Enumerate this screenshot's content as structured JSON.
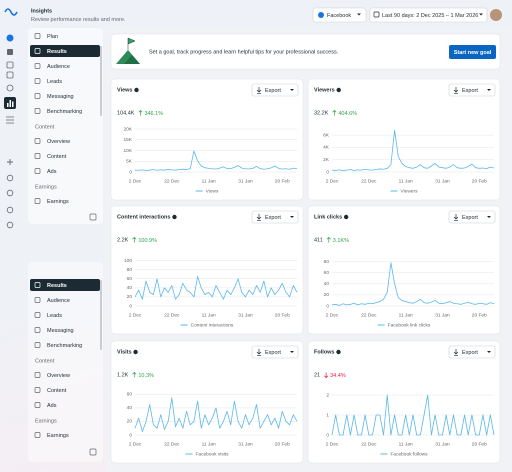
{
  "header": {
    "title": "Insights",
    "subtitle": "Review performance results and more.",
    "platform": "Facebook",
    "date_range": "Last 90 days: 2 Dec 2025 – 1 Mar 2026"
  },
  "nav": {
    "selected_index": 1,
    "sections": [
      {
        "items": [
          "Plan",
          "Results",
          "Audience",
          "Leads",
          "Messaging",
          "Benchmarking"
        ]
      },
      {
        "header": "Content",
        "items": [
          "Overview",
          "Content",
          "Ads"
        ]
      },
      {
        "header": "Earnings",
        "items": [
          "Earnings"
        ]
      }
    ]
  },
  "nav_copy": {
    "selected_index": 0,
    "sections": [
      {
        "items": [
          "Results",
          "Audience",
          "Leads",
          "Messaging",
          "Benchmarking"
        ]
      },
      {
        "header": "Content",
        "items": [
          "Overview",
          "Content",
          "Ads"
        ]
      },
      {
        "header": "Earnings",
        "items": [
          "Earnings"
        ]
      }
    ]
  },
  "banner": {
    "text": "Set a goal, track progress and learn helpful tips for your professional success.",
    "button": "Start new goal"
  },
  "chart_data": [
    {
      "type": "line",
      "title": "Views",
      "value": "104.4K",
      "change": "346.1%",
      "change_direction": "up",
      "button": "Export",
      "categories": [
        "2 Dec",
        null,
        null,
        null,
        null,
        null,
        null,
        null,
        null,
        null,
        "22 Dec",
        null,
        null,
        null,
        null,
        null,
        null,
        null,
        null,
        null,
        "11 Jan",
        null,
        null,
        null,
        null,
        null,
        null,
        null,
        null,
        null,
        "31 Jan",
        null,
        null,
        null,
        null,
        null,
        null,
        null,
        null,
        null,
        "20 Feb",
        null,
        null,
        null,
        null
      ],
      "series": [
        {
          "name": "Views",
          "color": "#5bb8ea",
          "values": [
            900,
            800,
            1000,
            700,
            900,
            1100,
            800,
            1000,
            900,
            1200,
            1000,
            900,
            1100,
            1300,
            1200,
            1500,
            9800,
            5200,
            2800,
            2000,
            1700,
            1500,
            1400,
            1800,
            2400,
            1600,
            1500,
            2200,
            3000,
            1800,
            1500,
            1400,
            1700,
            2600,
            1600,
            1300,
            1500,
            1900,
            2800,
            1700,
            1400,
            1500,
            1300,
            1800,
            1500
          ]
        }
      ],
      "ylim": [
        0,
        20000
      ],
      "yticks": [
        0,
        {
          "value": 5000,
          "label": "5K"
        },
        {
          "value": 10000,
          "label": "10K"
        },
        {
          "value": 15000,
          "label": "15K"
        },
        {
          "value": 20000,
          "label": "20K"
        }
      ],
      "grid": true
    },
    {
      "type": "line",
      "title": "Viewers",
      "value": "32.2K",
      "change": "404.6%",
      "change_direction": "up",
      "button": "Export",
      "categories": [
        "2 Dec",
        null,
        null,
        null,
        null,
        null,
        null,
        null,
        null,
        null,
        "22 Dec",
        null,
        null,
        null,
        null,
        null,
        null,
        null,
        null,
        null,
        "11 Jan",
        null,
        null,
        null,
        null,
        null,
        null,
        null,
        null,
        null,
        "31 Jan",
        null,
        null,
        null,
        null,
        null,
        null,
        null,
        null,
        null,
        "20 Feb",
        null,
        null,
        null,
        null
      ],
      "series": [
        {
          "name": "Viewers",
          "color": "#5bb8ea",
          "values": [
            300,
            250,
            350,
            200,
            300,
            400,
            250,
            350,
            300,
            450,
            350,
            300,
            400,
            500,
            450,
            600,
            1200,
            6800,
            2500,
            1400,
            900,
            700,
            600,
            800,
            1200,
            700,
            600,
            1000,
            1400,
            800,
            700,
            600,
            800,
            1200,
            700,
            600,
            650,
            900,
            1300,
            700,
            600,
            650,
            550,
            800,
            650
          ]
        }
      ],
      "ylim": [
        0,
        7000
      ],
      "yticks": [
        0,
        {
          "value": 2000,
          "label": "2K"
        },
        {
          "value": 4000,
          "label": "4K"
        },
        {
          "value": 6000,
          "label": "6K"
        }
      ],
      "grid": true
    },
    {
      "type": "line",
      "title": "Content interactions",
      "value": "2.2K",
      "change": "100.9%",
      "change_direction": "up",
      "button": "Export",
      "categories": [
        "2 Dec",
        null,
        null,
        null,
        null,
        null,
        null,
        null,
        null,
        null,
        "22 Dec",
        null,
        null,
        null,
        null,
        null,
        null,
        null,
        null,
        null,
        "11 Jan",
        null,
        null,
        null,
        null,
        null,
        null,
        null,
        null,
        null,
        "31 Jan",
        null,
        null,
        null,
        null,
        null,
        null,
        null,
        null,
        null,
        "20 Feb",
        null,
        null,
        null,
        null
      ],
      "series": [
        {
          "name": "Content interactions",
          "color": "#5bb8ea",
          "values": [
            20,
            35,
            15,
            55,
            30,
            25,
            60,
            20,
            40,
            30,
            45,
            15,
            25,
            50,
            35,
            30,
            20,
            65,
            40,
            25,
            30,
            20,
            45,
            30,
            15,
            35,
            25,
            40,
            60,
            30,
            20,
            35,
            25,
            45,
            30,
            55,
            20,
            40,
            25,
            35,
            50,
            30,
            20,
            45,
            30
          ]
        }
      ],
      "ylim": [
        0,
        110
      ],
      "yticks": [
        0,
        20,
        40,
        60,
        80,
        100
      ],
      "grid": true
    },
    {
      "type": "line",
      "title": "Link clicks",
      "value": "411",
      "change": "3.1K%",
      "change_direction": "up",
      "button": "Export",
      "categories": [
        "2 Dec",
        null,
        null,
        null,
        null,
        null,
        null,
        null,
        null,
        null,
        "22 Dec",
        null,
        null,
        null,
        null,
        null,
        null,
        null,
        null,
        null,
        "11 Jan",
        null,
        null,
        null,
        null,
        null,
        null,
        null,
        null,
        null,
        "31 Jan",
        null,
        null,
        null,
        null,
        null,
        null,
        null,
        null,
        null,
        "20 Feb",
        null,
        null,
        null,
        null
      ],
      "series": [
        {
          "name": "Facebook link clicks",
          "color": "#5bb8ea",
          "values": [
            2,
            3,
            1,
            4,
            2,
            3,
            5,
            2,
            4,
            3,
            5,
            4,
            6,
            8,
            12,
            25,
            78,
            40,
            15,
            10,
            8,
            6,
            5,
            8,
            12,
            6,
            5,
            7,
            10,
            5,
            4,
            6,
            8,
            5,
            4,
            3,
            5,
            7,
            4,
            3,
            5,
            4,
            3,
            6,
            4
          ]
        }
      ],
      "ylim": [
        0,
        90
      ],
      "yticks": [
        0,
        20,
        40,
        60,
        80
      ],
      "grid": true
    },
    {
      "type": "line",
      "title": "Visits",
      "value": "1.2K",
      "change": "10.3%",
      "change_direction": "up",
      "button": "Export",
      "categories": [
        "2 Dec",
        null,
        null,
        null,
        null,
        null,
        null,
        null,
        null,
        null,
        "22 Dec",
        null,
        null,
        null,
        null,
        null,
        null,
        null,
        null,
        null,
        "11 Jan",
        null,
        null,
        null,
        null,
        null,
        null,
        null,
        null,
        null,
        "31 Jan",
        null,
        null,
        null,
        null,
        null,
        null,
        null,
        null,
        null,
        "20 Feb",
        null,
        null,
        null,
        null
      ],
      "series": [
        {
          "name": "Facebook visits",
          "color": "#5bb8ea",
          "values": [
            10,
            25,
            5,
            20,
            45,
            15,
            10,
            30,
            8,
            20,
            55,
            12,
            25,
            10,
            35,
            15,
            20,
            50,
            10,
            30,
            15,
            25,
            40,
            10,
            20,
            35,
            15,
            50,
            20,
            10,
            30,
            15,
            25,
            45,
            10,
            20,
            30,
            15,
            25,
            10,
            35,
            20,
            15,
            30,
            20
          ]
        }
      ],
      "ylim": [
        0,
        65
      ],
      "yticks": [
        0,
        20,
        40,
        60
      ],
      "grid": true
    },
    {
      "type": "line",
      "title": "Follows",
      "value": "21",
      "change": "34.4%",
      "change_direction": "down",
      "button": "Export",
      "categories": [
        "2 Dec",
        null,
        null,
        null,
        null,
        null,
        null,
        null,
        null,
        null,
        "22 Dec",
        null,
        null,
        null,
        null,
        null,
        null,
        null,
        null,
        null,
        "11 Jan",
        null,
        null,
        null,
        null,
        null,
        null,
        null,
        null,
        null,
        "31 Jan",
        null,
        null,
        null,
        null,
        null,
        null,
        null,
        null,
        null,
        "20 Feb",
        null,
        null,
        null,
        null
      ],
      "series": [
        {
          "name": "Facebook follows",
          "color": "#5bb8ea",
          "values": [
            0,
            1,
            0,
            0,
            1,
            0,
            1,
            0,
            0,
            1,
            0,
            0,
            1,
            1,
            0,
            2,
            0,
            1,
            0,
            0,
            1,
            0,
            1,
            0,
            0,
            1,
            2,
            0,
            1,
            0,
            0,
            1,
            0,
            1,
            0,
            0,
            1,
            0,
            1,
            0,
            0,
            1,
            0,
            1,
            0
          ]
        }
      ],
      "ylim": [
        0,
        2.2
      ],
      "yticks": [
        0,
        1,
        2
      ],
      "grid": true
    }
  ]
}
